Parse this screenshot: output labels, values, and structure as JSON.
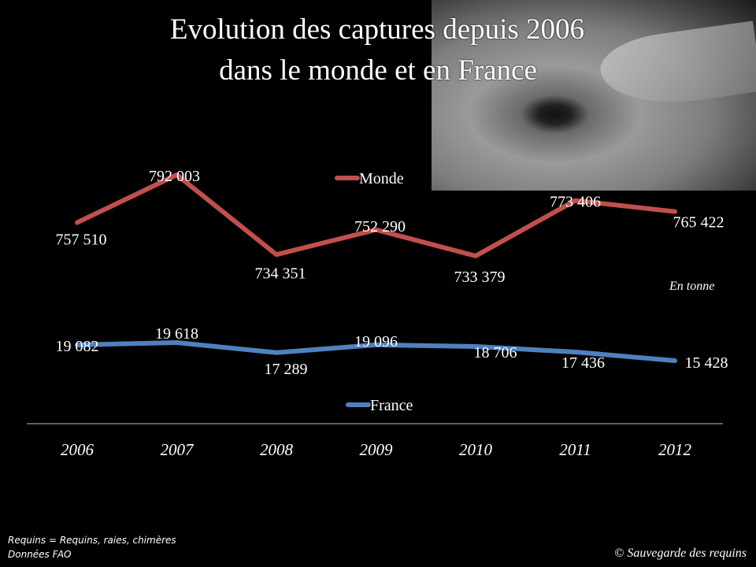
{
  "chart_data": {
    "type": "line",
    "title": "Evolution des captures depuis 2006",
    "subtitle": "dans le monde et en France",
    "categories": [
      "2006",
      "2007",
      "2008",
      "2009",
      "2010",
      "2011",
      "2012"
    ],
    "series": [
      {
        "name": "Monde",
        "color": "#C0504D",
        "values": [
          757510,
          792003,
          734351,
          752290,
          733379,
          773406,
          765422
        ],
        "labels": [
          "757 510",
          "792 003",
          "734 351",
          "752 290",
          "733 379",
          "773 406",
          "765 422"
        ]
      },
      {
        "name": "France",
        "color": "#4F81BD",
        "values": [
          19082,
          19618,
          17289,
          19096,
          18706,
          17436,
          15428
        ],
        "labels": [
          "19 082",
          "19 618",
          "17 289",
          "19 096",
          "18 706",
          "17 436",
          "15 428"
        ],
        "last_label_color": "#FFFF00"
      }
    ],
    "unit_note": "En tonne",
    "legend": [
      "Monde",
      "France"
    ]
  },
  "notes": [
    "Requins = Requins, raies, chimères",
    "Données FAO"
  ],
  "copyright": "© Sauvegarde des requins"
}
